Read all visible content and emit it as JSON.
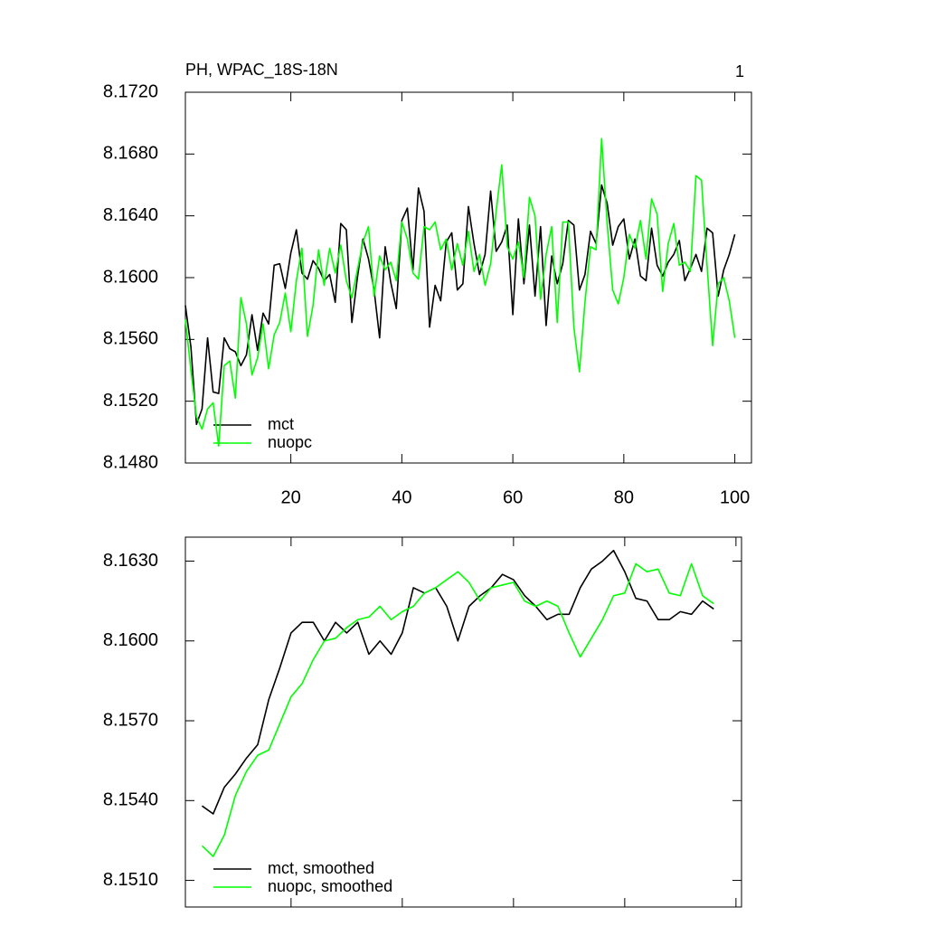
{
  "chart_data": [
    {
      "type": "line",
      "title": "PH, WPAC_18S-18N",
      "right_title": "1",
      "legend_corner": "lower left",
      "xlim": [
        1,
        103
      ],
      "xticks": [
        20,
        40,
        60,
        80,
        100
      ],
      "show_xtick_labels": true,
      "ylim": [
        8.148,
        8.172
      ],
      "yticks": [
        {
          "value": 8.148,
          "label": "8.1480"
        },
        {
          "value": 8.152,
          "label": "8.1520"
        },
        {
          "value": 8.156,
          "label": "8.1560"
        },
        {
          "value": 8.16,
          "label": "8.1600"
        },
        {
          "value": 8.164,
          "label": "8.1640"
        },
        {
          "value": 8.168,
          "label": "8.1680"
        },
        {
          "value": 8.172,
          "label": "8.1720"
        }
      ],
      "x": [
        1,
        2,
        3,
        4,
        5,
        6,
        7,
        8,
        9,
        10,
        11,
        12,
        13,
        14,
        15,
        16,
        17,
        18,
        19,
        20,
        21,
        22,
        23,
        24,
        25,
        26,
        27,
        28,
        29,
        30,
        31,
        32,
        33,
        34,
        35,
        36,
        37,
        38,
        39,
        40,
        41,
        42,
        43,
        44,
        45,
        46,
        47,
        48,
        49,
        50,
        51,
        52,
        53,
        54,
        55,
        56,
        57,
        58,
        59,
        60,
        61,
        62,
        63,
        64,
        65,
        66,
        67,
        68,
        69,
        70,
        71,
        72,
        73,
        74,
        75,
        76,
        77,
        78,
        79,
        80,
        81,
        82,
        83,
        84,
        85,
        86,
        87,
        88,
        89,
        90,
        91,
        92,
        93,
        94,
        95,
        96,
        97,
        98,
        99,
        100
      ],
      "series": [
        {
          "name": "mct",
          "color": "#000000",
          "values": [
            8.1582,
            8.1555,
            8.1505,
            8.1515,
            8.1561,
            8.1526,
            8.1525,
            8.1561,
            8.1554,
            8.1552,
            8.1543,
            8.155,
            8.1576,
            8.1553,
            8.1577,
            8.157,
            8.1608,
            8.1609,
            8.1593,
            8.1616,
            8.1631,
            8.1603,
            8.1599,
            8.1611,
            8.1606,
            8.1598,
            8.1602,
            8.1584,
            8.1635,
            8.1631,
            8.1571,
            8.16,
            8.1625,
            8.1612,
            8.1592,
            8.1561,
            8.162,
            8.1597,
            8.158,
            8.1637,
            8.1645,
            8.1605,
            8.1658,
            8.1643,
            8.1568,
            8.1595,
            8.1585,
            8.1623,
            8.1629,
            8.1592,
            8.1596,
            8.1646,
            8.1622,
            8.1602,
            8.1615,
            8.1656,
            8.1617,
            8.1623,
            8.1634,
            8.1576,
            8.1638,
            8.1596,
            8.1634,
            8.1588,
            8.1633,
            8.1569,
            8.1614,
            8.1596,
            8.1609,
            8.1637,
            8.1634,
            8.1592,
            8.1602,
            8.163,
            8.1622,
            8.166,
            8.1648,
            8.1621,
            8.1633,
            8.1638,
            8.1612,
            8.1625,
            8.1601,
            8.1598,
            8.1632,
            8.1608,
            8.1601,
            8.161,
            8.1615,
            8.1624,
            8.1598,
            8.1606,
            8.1615,
            8.1604,
            8.1632,
            8.1629,
            8.1588,
            8.1605,
            8.1615,
            8.1628
          ]
        },
        {
          "name": "nuopc",
          "color": "#00ff00",
          "values": [
            8.1573,
            8.154,
            8.151,
            8.1502,
            8.1515,
            8.1519,
            8.1491,
            8.1543,
            8.1546,
            8.1522,
            8.1587,
            8.157,
            8.1537,
            8.1548,
            8.157,
            8.1541,
            8.1563,
            8.1571,
            8.159,
            8.1565,
            8.1598,
            8.1619,
            8.1562,
            8.1582,
            8.1618,
            8.1595,
            8.1619,
            8.1603,
            8.1621,
            8.1598,
            8.1587,
            8.1605,
            8.1623,
            8.1633,
            8.1588,
            8.1614,
            8.1605,
            8.161,
            8.1598,
            8.1636,
            8.1625,
            8.1603,
            8.1599,
            8.1633,
            8.1631,
            8.1636,
            8.1618,
            8.1625,
            8.1605,
            8.1622,
            8.1608,
            8.163,
            8.1604,
            8.1615,
            8.1595,
            8.1609,
            8.1643,
            8.1673,
            8.162,
            8.1612,
            8.1623,
            8.16,
            8.1652,
            8.164,
            8.1586,
            8.1615,
            8.1633,
            8.1571,
            8.1636,
            8.1636,
            8.1568,
            8.1539,
            8.1584,
            8.162,
            8.1618,
            8.169,
            8.1635,
            8.1592,
            8.1583,
            8.16,
            8.1628,
            8.1619,
            8.1637,
            8.1612,
            8.1651,
            8.1641,
            8.1591,
            8.1622,
            8.1635,
            8.1608,
            8.161,
            8.1604,
            8.1666,
            8.1663,
            8.1608,
            8.1556,
            8.1596,
            8.16,
            8.1585,
            8.1561
          ]
        }
      ]
    },
    {
      "type": "line",
      "legend_corner": "lower left",
      "xlim": [
        1,
        101
      ],
      "xticks": [
        20,
        40,
        60,
        80,
        100
      ],
      "show_xtick_labels": false,
      "ylim": [
        8.15,
        8.1639
      ],
      "yticks": [
        {
          "value": 8.151,
          "label": "8.1510"
        },
        {
          "value": 8.154,
          "label": "8.1540"
        },
        {
          "value": 8.157,
          "label": "8.1570"
        },
        {
          "value": 8.16,
          "label": "8.1600"
        },
        {
          "value": 8.163,
          "label": "8.1630"
        }
      ],
      "x": [
        4,
        6,
        8,
        10,
        12,
        14,
        16,
        18,
        20,
        22,
        24,
        26,
        28,
        30,
        32,
        34,
        36,
        38,
        40,
        42,
        44,
        46,
        48,
        50,
        52,
        54,
        56,
        58,
        60,
        62,
        64,
        66,
        68,
        70,
        72,
        74,
        76,
        78,
        80,
        82,
        84,
        86,
        88,
        90,
        92,
        94,
        96
      ],
      "series": [
        {
          "name": "mct, smoothed",
          "color": "#000000",
          "values": [
            8.1538,
            8.1535,
            8.1545,
            8.155,
            8.1556,
            8.1561,
            8.1578,
            8.159,
            8.1603,
            8.1607,
            8.1607,
            8.16,
            8.1607,
            8.1603,
            8.1607,
            8.1595,
            8.16,
            8.1595,
            8.1603,
            8.162,
            8.1618,
            8.162,
            8.1613,
            8.16,
            8.1613,
            8.1617,
            8.162,
            8.1625,
            8.1623,
            8.1617,
            8.1613,
            8.1608,
            8.161,
            8.161,
            8.162,
            8.1627,
            8.163,
            8.1634,
            8.1626,
            8.1616,
            8.1615,
            8.1608,
            8.1608,
            8.1611,
            8.161,
            8.1615,
            8.1612
          ]
        },
        {
          "name": "nuopc, smoothed",
          "color": "#00ff00",
          "values": [
            8.1523,
            8.1519,
            8.1527,
            8.1542,
            8.1551,
            8.1557,
            8.1559,
            8.1569,
            8.1579,
            8.1584,
            8.1593,
            8.16,
            8.1601,
            8.1605,
            8.1608,
            8.1609,
            8.1613,
            8.1608,
            8.1611,
            8.1613,
            8.1618,
            8.162,
            8.1623,
            8.1626,
            8.1622,
            8.1615,
            8.162,
            8.1621,
            8.1622,
            8.1615,
            8.1613,
            8.1615,
            8.1613,
            8.1603,
            8.1594,
            8.1601,
            8.1608,
            8.1617,
            8.1618,
            8.1629,
            8.1626,
            8.1627,
            8.1618,
            8.1617,
            8.1629,
            8.1617,
            8.1614
          ]
        }
      ]
    }
  ]
}
